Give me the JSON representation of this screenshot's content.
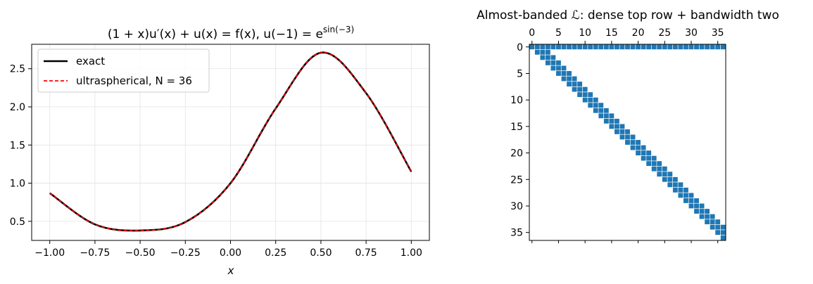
{
  "chart_data": [
    {
      "type": "line",
      "title": "(1 + x)u′(x) + u(x) = f(x),  u(−1) = e",
      "title_superscript": "sin(−3)",
      "xlabel": "x",
      "ylabel": "",
      "xlim": [
        -1.1,
        1.1
      ],
      "ylim": [
        0.25,
        2.82
      ],
      "grid": true,
      "legend_position": "top-left",
      "x_ticks": [
        -1.0,
        -0.75,
        -0.5,
        -0.25,
        0.0,
        0.25,
        0.5,
        0.75,
        1.0
      ],
      "x_tick_labels": [
        "−1.00",
        "−0.75",
        "−0.50",
        "−0.25",
        "0.00",
        "0.25",
        "0.50",
        "0.75",
        "1.00"
      ],
      "y_ticks": [
        0.5,
        1.0,
        1.5,
        2.0,
        2.5
      ],
      "y_tick_labels": [
        "0.5",
        "1.0",
        "1.5",
        "2.0",
        "2.5"
      ],
      "series": [
        {
          "name": "exact",
          "color": "#000000",
          "style": "solid",
          "x": [
            -1.0,
            -0.75,
            -0.5,
            -0.25,
            0.0,
            0.25,
            0.5,
            0.75,
            1.0
          ],
          "y": [
            0.87,
            0.46,
            0.38,
            0.49,
            1.0,
            1.98,
            2.71,
            2.18,
            1.15
          ]
        },
        {
          "name": "ultraspherical, N = 36",
          "color": "#ff0000",
          "style": "dashed",
          "x": [
            -1.0,
            -0.75,
            -0.5,
            -0.25,
            0.0,
            0.25,
            0.5,
            0.75,
            1.0
          ],
          "y": [
            0.87,
            0.46,
            0.38,
            0.49,
            1.0,
            1.98,
            2.71,
            2.18,
            1.15
          ]
        }
      ]
    },
    {
      "type": "heatmap",
      "title": "Almost-banded ℒ: dense top row + bandwidth two",
      "matrix_size": 37,
      "x_ticks": [
        0,
        5,
        10,
        15,
        20,
        25,
        30,
        35
      ],
      "y_ticks": [
        0,
        5,
        10,
        15,
        20,
        25,
        30,
        35
      ],
      "color": "#1f77b4",
      "dense_rows": [
        0
      ],
      "band_offsets": [
        0,
        1,
        2
      ]
    }
  ]
}
